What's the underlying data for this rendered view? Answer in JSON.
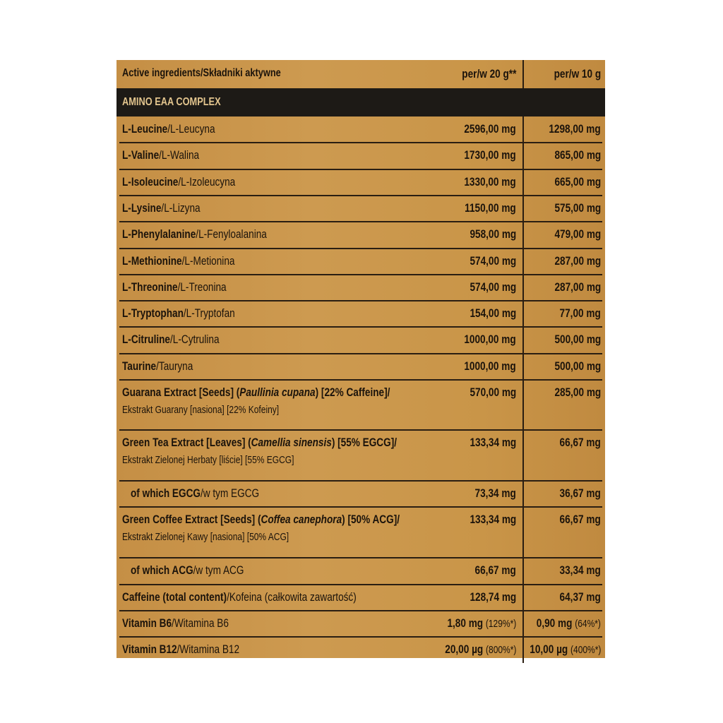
{
  "header": {
    "ingredients_label": "Active ingredients/Składniki aktywne",
    "col1_label": "per/w 20 g**",
    "col2_label": "per/w 10 g"
  },
  "section_title": "AMINO EAA COMPLEX",
  "colors": {
    "background": "#c9954a",
    "band": "#1d1a16",
    "band_text": "#e3c58e",
    "text": "#1b130b"
  },
  "rows": [
    {
      "indent": false,
      "name": [
        {
          "t": "L-Leucine",
          "s": "b"
        },
        {
          "t": "/L-Leucyna",
          "s": ""
        }
      ],
      "v1": "2596,00 mg",
      "v2": "1298,00 mg"
    },
    {
      "indent": false,
      "name": [
        {
          "t": "L-Valine",
          "s": "b"
        },
        {
          "t": "/L-Walina",
          "s": ""
        }
      ],
      "v1": "1730,00 mg",
      "v2": "865,00 mg"
    },
    {
      "indent": false,
      "name": [
        {
          "t": "L-Isoleucine",
          "s": "b"
        },
        {
          "t": "/L-Izoleucyna",
          "s": ""
        }
      ],
      "v1": "1330,00 mg",
      "v2": "665,00 mg"
    },
    {
      "indent": false,
      "name": [
        {
          "t": "L-Lysine",
          "s": "b"
        },
        {
          "t": "/L-Lizyna",
          "s": ""
        }
      ],
      "v1": "1150,00 mg",
      "v2": "575,00 mg"
    },
    {
      "indent": false,
      "name": [
        {
          "t": "L-Phenylalanine",
          "s": "b"
        },
        {
          "t": "/L-Fenyloalanina",
          "s": ""
        }
      ],
      "v1": "958,00 mg",
      "v2": "479,00 mg"
    },
    {
      "indent": false,
      "name": [
        {
          "t": "L-Methionine",
          "s": "b"
        },
        {
          "t": "/L-Metionina",
          "s": ""
        }
      ],
      "v1": "574,00 mg",
      "v2": "287,00 mg"
    },
    {
      "indent": false,
      "name": [
        {
          "t": "L-Threonine",
          "s": "b"
        },
        {
          "t": "/L-Treonina",
          "s": ""
        }
      ],
      "v1": "574,00 mg",
      "v2": "287,00 mg"
    },
    {
      "indent": false,
      "name": [
        {
          "t": "L-Tryptophan",
          "s": "b"
        },
        {
          "t": "/L-Tryptofan",
          "s": ""
        }
      ],
      "v1": "154,00 mg",
      "v2": "77,00 mg"
    },
    {
      "indent": false,
      "name": [
        {
          "t": "L-Citruline",
          "s": "b"
        },
        {
          "t": "/L-Cytrulina",
          "s": ""
        }
      ],
      "v1": "1000,00 mg",
      "v2": "500,00 mg"
    },
    {
      "indent": false,
      "name": [
        {
          "t": "Taurine",
          "s": "b"
        },
        {
          "t": "/Tauryna",
          "s": ""
        }
      ],
      "v1": "1000,00 mg",
      "v2": "500,00 mg"
    },
    {
      "indent": false,
      "name": [
        {
          "t": "Guarana Extract [Seeds] (",
          "s": "b"
        },
        {
          "t": "Paullinia cupana",
          "s": "b i"
        },
        {
          "t": ") [22% Caffeine]/",
          "s": "b"
        }
      ],
      "name2": "Ekstrakt Guarany [nasiona] [22% Kofeiny]",
      "v1": "570,00 mg",
      "v2": "285,00 mg"
    },
    {
      "indent": false,
      "name": [
        {
          "t": "Green Tea Extract [Leaves] (",
          "s": "b"
        },
        {
          "t": "Camellia sinensis",
          "s": "b i"
        },
        {
          "t": ") [55% EGCG]/",
          "s": "b"
        }
      ],
      "name2": "Ekstrakt Zielonej Herbaty [liście] [55% EGCG]",
      "v1": "133,34 mg",
      "v2": "66,67 mg"
    },
    {
      "indent": true,
      "name": [
        {
          "t": "of which EGCG",
          "s": "b"
        },
        {
          "t": "/w tym EGCG",
          "s": ""
        }
      ],
      "v1": "73,34 mg",
      "v2": "36,67 mg"
    },
    {
      "indent": false,
      "name": [
        {
          "t": "Green Coffee Extract [Seeds] (",
          "s": "b"
        },
        {
          "t": "Coffea canephora",
          "s": "b i"
        },
        {
          "t": ") [50% ACG]/",
          "s": "b"
        }
      ],
      "name2": "Ekstrakt Zielonej Kawy [nasiona] [50% ACG]",
      "v1": "133,34 mg",
      "v2": "66,67 mg"
    },
    {
      "indent": true,
      "name": [
        {
          "t": "of which ACG",
          "s": "b"
        },
        {
          "t": "/w tym ACG",
          "s": ""
        }
      ],
      "v1": "66,67 mg",
      "v2": "33,34 mg"
    },
    {
      "indent": false,
      "name": [
        {
          "t": "Caffeine (total content)",
          "s": "b"
        },
        {
          "t": "/Kofeina (całkowita zawartość)",
          "s": ""
        }
      ],
      "v1": "128,74 mg",
      "v2": "64,37 mg"
    },
    {
      "indent": false,
      "name": [
        {
          "t": "Vitamin B6",
          "s": "b"
        },
        {
          "t": "/Witamina B6",
          "s": ""
        }
      ],
      "v1": "1,80 mg",
      "v1_pct": "(129%*)",
      "v2": "0,90 mg",
      "v2_pct": "(64%*)"
    },
    {
      "indent": false,
      "name": [
        {
          "t": "Vitamin B12",
          "s": "b"
        },
        {
          "t": "/Witamina B12",
          "s": ""
        }
      ],
      "v1": "20,00 µg",
      "v1_pct": "(800%*)",
      "v2": "10,00 µg",
      "v2_pct": "(400%*)"
    }
  ]
}
